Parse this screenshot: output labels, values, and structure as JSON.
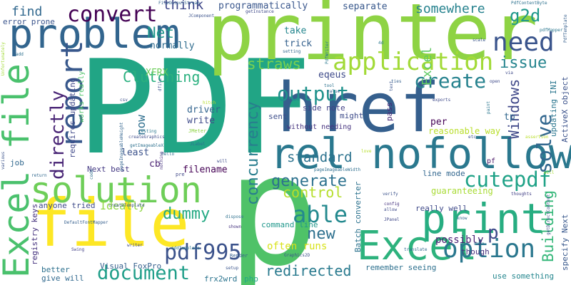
{
  "words": [
    {
      "text": "p",
      "color": "#4fc268"
    },
    {
      "text": "PDF",
      "color": "#21a585"
    },
    {
      "text": "printer",
      "color": "#8ed344"
    },
    {
      "text": "href",
      "color": "#355f8d"
    },
    {
      "text": "rel nofollow",
      "color": "#2a788e"
    },
    {
      "text": "file",
      "color": "#fde725"
    },
    {
      "text": "problem",
      "color": "#32658e"
    },
    {
      "text": "Excel file",
      "color": "#4ac16d"
    },
    {
      "text": "solution",
      "color": "#6ece58"
    },
    {
      "text": "print",
      "color": "#27ad81"
    },
    {
      "text": "Excel",
      "color": "#2db27d"
    },
    {
      "text": "report",
      "color": "#38588c"
    },
    {
      "text": "application",
      "color": "#a2da37"
    },
    {
      "text": "need",
      "color": "#3a548c"
    },
    {
      "text": "convert",
      "color": "#440154"
    },
    {
      "text": "option",
      "color": "#2a778e"
    },
    {
      "text": "pdf995",
      "color": "#3b528b"
    },
    {
      "text": "document",
      "color": "#1f9e89"
    },
    {
      "text": "cutepdf",
      "color": "#1fa287"
    },
    {
      "text": "create",
      "color": "#26828e"
    },
    {
      "text": "output",
      "color": "#20928c"
    },
    {
      "text": "able",
      "color": "#23898e"
    },
    {
      "text": "directly",
      "color": "#482475"
    },
    {
      "text": "solve",
      "color": "#31668e"
    },
    {
      "text": "concurrency",
      "color": "#287d8e"
    },
    {
      "text": "generate",
      "color": "#2c718e"
    },
    {
      "text": "Building",
      "color": "#35b779"
    },
    {
      "text": "redirected",
      "color": "#297a8e"
    },
    {
      "text": "new",
      "color": "#2d708e"
    },
    {
      "text": "p",
      "color": "#3e4989"
    },
    {
      "text": "control",
      "color": "#b5de2b"
    },
    {
      "text": "dummy",
      "color": "#23a983"
    },
    {
      "text": "Clutching",
      "color": "#2ab07f"
    },
    {
      "text": "straws",
      "color": "#7ad151"
    },
    {
      "text": "issue",
      "color": "#25848e"
    },
    {
      "text": "Windows",
      "color": "#3f4788"
    },
    {
      "text": "standard",
      "color": "#2c728e"
    },
    {
      "text": "g2d",
      "color": "#1f988b"
    },
    {
      "text": "somewhere",
      "color": "#26828e"
    },
    {
      "text": "think",
      "color": "#3f4788"
    },
    {
      "text": "Net",
      "color": "#1f958b"
    },
    {
      "text": "find",
      "color": "#31688e"
    },
    {
      "text": "possibly",
      "color": "#482173"
    },
    {
      "text": "Excel",
      "color": "#5ec962"
    },
    {
      "text": "Ideally",
      "color": "#8fd744"
    },
    {
      "text": "often runs",
      "color": "#d8e219"
    },
    {
      "text": "programmatically",
      "color": "#39568c"
    },
    {
      "text": "XFRX",
      "color": "#6ccd5a"
    },
    {
      "text": "now",
      "color": "#2e6e8e"
    },
    {
      "text": "separate",
      "color": "#38588c"
    },
    {
      "text": "eqeus",
      "color": "#3e4a89"
    },
    {
      "text": "take",
      "color": "#24868e"
    },
    {
      "text": "trick",
      "color": "#34608d"
    },
    {
      "text": "normally",
      "color": "#2f6c8e"
    },
    {
      "text": "reasonable way",
      "color": "#b8de29"
    },
    {
      "text": "driver",
      "color": "#32648e"
    },
    {
      "text": "write",
      "color": "#3e4a89"
    },
    {
      "text": "cb",
      "color": "#481f70"
    },
    {
      "text": "filename",
      "color": "#440154"
    },
    {
      "text": "least",
      "color": "#3b528b"
    },
    {
      "text": "Next best",
      "color": "#443983"
    },
    {
      "text": "job",
      "color": "#31688e"
    },
    {
      "text": "error prone",
      "color": "#3a548c"
    },
    {
      "text": "anyone tried",
      "color": "#3e4a89"
    },
    {
      "text": "registry keys",
      "color": "#46337f"
    },
    {
      "text": "requires updating",
      "color": "#3f4889"
    },
    {
      "text": "works really",
      "color": "#50c46a"
    },
    {
      "text": "Visual FoxPro",
      "color": "#355f8d"
    },
    {
      "text": "better",
      "color": "#2d708e"
    },
    {
      "text": "give will",
      "color": "#30698e"
    },
    {
      "text": "frx2wrd",
      "color": "#2b748e"
    },
    {
      "text": "php",
      "color": "#22a785"
    },
    {
      "text": "command line",
      "color": "#1f978b"
    },
    {
      "text": "Batch converter",
      "color": "#2c728e"
    },
    {
      "text": "remember seeing",
      "color": "#2d708e"
    },
    {
      "text": "use something",
      "color": "#24868e"
    },
    {
      "text": "specify Next",
      "color": "#38588c"
    },
    {
      "text": "though",
      "color": "#46307e"
    },
    {
      "text": "really well",
      "color": "#3e4989"
    },
    {
      "text": "guaranteeing",
      "color": "#a8db34"
    },
    {
      "text": "line mode",
      "color": "#31668e"
    },
    {
      "text": "ActiveX object",
      "color": "#3b528b"
    },
    {
      "text": "updating INI",
      "color": "#2a768e"
    },
    {
      "text": "tp",
      "color": "#31678e"
    },
    {
      "text": "per",
      "color": "#440154"
    },
    {
      "text": "side note",
      "color": "#424086"
    },
    {
      "text": "might",
      "color": "#3e4c8a"
    },
    {
      "text": "pass",
      "color": "#482878"
    },
    {
      "text": "sent",
      "color": "#3d4e8a"
    },
    {
      "text": "without needing",
      "color": "#46337f"
    },
    {
      "text": "pf",
      "color": "#471365"
    },
    {
      "text": "FileOutputStream",
      "color": "#33638d"
    },
    {
      "text": "JComponent",
      "color": "#3b528b"
    },
    {
      "text": "getInstance",
      "color": "#3e4989"
    },
    {
      "text": "PdfWriter",
      "color": "#2a788e"
    },
    {
      "text": "PdfContentByte",
      "color": "#2c718e"
    },
    {
      "text": "PdfTemplate",
      "color": "#355f8d"
    },
    {
      "text": "setting",
      "color": "#31688e"
    },
    {
      "text": "Graphics2D",
      "color": "#3b528b"
    },
    {
      "text": "createGraphics",
      "color": "#3e4c8a"
    },
    {
      "text": "pageImageableHeight",
      "color": "#32648e"
    },
    {
      "text": "getImageableX",
      "color": "#2d708e"
    },
    {
      "text": "pageImageableWidth",
      "color": "#2e6e8e"
    },
    {
      "text": "createTemplate",
      "color": "#3b528b"
    },
    {
      "text": "DefaultFontMapper",
      "color": "#355f8d"
    },
    {
      "text": "addTemplate",
      "color": "#2a768e"
    },
    {
      "text": "getDirectContent",
      "color": "#3d4e8a"
    },
    {
      "text": "Swing",
      "color": "#424086"
    },
    {
      "text": "writer",
      "color": "#3e4a89"
    },
    {
      "text": "dispose",
      "color": "#2d708e"
    },
    {
      "text": "shown",
      "color": "#46337f"
    },
    {
      "text": "setup",
      "color": "#3a548c"
    },
    {
      "text": "Render",
      "color": "#355f8d"
    },
    {
      "text": "JPanel",
      "color": "#3f4788"
    },
    {
      "text": "JLabel",
      "color": "#2c728e"
    },
    {
      "text": "JMeter",
      "color": "#8ed344"
    },
    {
      "text": "testing",
      "color": "#2a788e"
    },
    {
      "text": "hello",
      "color": "#2e6e8e"
    },
    {
      "text": "thoughts",
      "color": "#424086"
    },
    {
      "text": "translate",
      "color": "#31688e"
    },
    {
      "text": "exports",
      "color": "#3e4989"
    },
    {
      "text": "paint",
      "color": "#2a768e"
    },
    {
      "text": "love",
      "color": "#b5de2b"
    },
    {
      "text": "verify",
      "color": "#3b528b"
    },
    {
      "text": "allow",
      "color": "#3e4a89"
    },
    {
      "text": "config",
      "color": "#46337f"
    },
    {
      "text": "know",
      "color": "#31668e"
    },
    {
      "text": "csv",
      "color": "#3d4e8a"
    },
    {
      "text": "tool",
      "color": "#2c728e"
    },
    {
      "text": "value",
      "color": "#355f8d"
    },
    {
      "text": "open",
      "color": "#3e4989"
    },
    {
      "text": "scale",
      "color": "#3a548c"
    },
    {
      "text": "add",
      "color": "#2d708e"
    },
    {
      "text": "4d",
      "color": "#2a788e"
    },
    {
      "text": "Unfortunately",
      "color": "#a2da37"
    },
    {
      "text": "various",
      "color": "#3b528b"
    },
    {
      "text": "return",
      "color": "#31688e"
    },
    {
      "text": "code",
      "color": "#2e6e8e"
    },
    {
      "text": "nothing",
      "color": "#46337f"
    },
    {
      "text": "will",
      "color": "#3e4c8a"
    },
    {
      "text": "pre",
      "color": "#3f4788"
    },
    {
      "text": "etc",
      "color": "#3b528b"
    },
    {
      "text": "assertion",
      "color": "#b8de29"
    },
    {
      "text": "data",
      "color": "#2c718e"
    },
    {
      "text": "via",
      "color": "#3e4a89"
    },
    {
      "text": "ties",
      "color": "#355f8d"
    },
    {
      "text": "dfile",
      "color": "#3b528b"
    },
    {
      "text": "pdfMapper",
      "color": "#2a768e"
    },
    {
      "text": "text",
      "color": "#3a548c"
    },
    {
      "text": "hitch",
      "color": "#b5de2b"
    },
    {
      "text": "will",
      "color": "#a8db34"
    }
  ]
}
